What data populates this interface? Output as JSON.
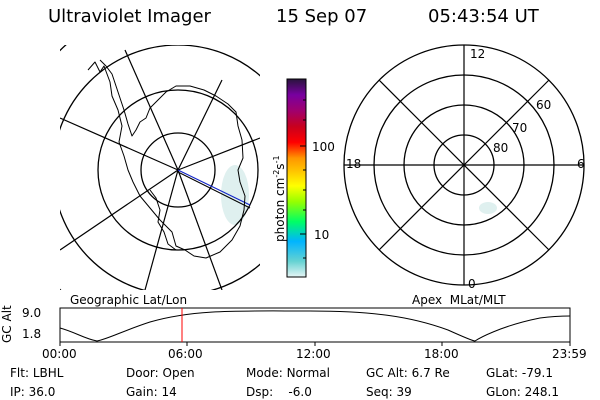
{
  "header": {
    "title": "Ultraviolet Imager",
    "date": "15 Sep 07",
    "time": "05:43:54 UT"
  },
  "left_map": {
    "caption": "Geographic Lat/Lon"
  },
  "colorbar": {
    "unit_label": "photon cm",
    "unit_exp1": "-2",
    "unit_mid": "s",
    "unit_exp2": "-1",
    "tick_high": "100",
    "tick_low": "10",
    "gradient_colors": [
      "#e6f5f5",
      "#64d2d2",
      "#00b4ff",
      "#00ff64",
      "#96ff00",
      "#ffff00",
      "#ffc800",
      "#ff9600",
      "#ff0000",
      "#c8001e",
      "#a0006e",
      "#7800a0",
      "#28143c"
    ]
  },
  "right_dial": {
    "caption": "Apex  MLat/MLT",
    "mlt_labels": [
      "12",
      "18",
      "6",
      "0"
    ],
    "mlat_labels": [
      "60",
      "70",
      "80"
    ]
  },
  "alt_plot": {
    "axis_label": "GC Alt",
    "ytick_top": "9.0",
    "ytick_bottom": "1.8",
    "xticks": [
      "00:00",
      "06:00",
      "12:00",
      "18:00",
      "23:59"
    ],
    "marker_time": "05:43"
  },
  "footer": {
    "row1": [
      {
        "label": "Flt:",
        "value": "LBHL"
      },
      {
        "label": "Door:",
        "value": "Open"
      },
      {
        "label": "Mode:",
        "value": "Normal"
      },
      {
        "label": "GC Alt:",
        "value": "6.7 Re"
      },
      {
        "label": "GLat:",
        "value": "-79.1"
      }
    ],
    "row2": [
      {
        "label": "IP:",
        "value": "36.0"
      },
      {
        "label": "Gain:",
        "value": "14"
      },
      {
        "label": "Dsp:",
        "value": "   -6.0"
      },
      {
        "label": "Seq:",
        "value": "39"
      },
      {
        "label": "GLon:",
        "value": "248.1"
      }
    ]
  }
}
